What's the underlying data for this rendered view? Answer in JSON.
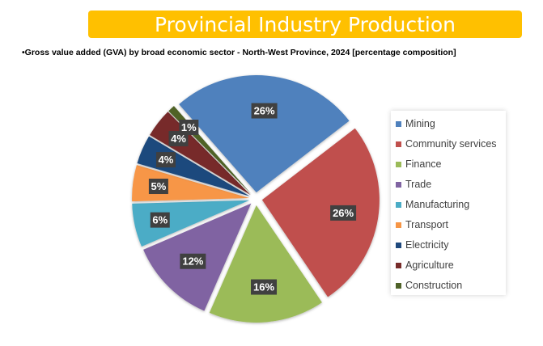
{
  "header": {
    "title": "Provincial Industry Production",
    "subtitle": "•Gross value added (GVA) by broad economic sector - North-West Province, 2024 [percentage composition]"
  },
  "chart_data": {
    "type": "pie",
    "title": "",
    "labels": [
      "Mining",
      "Community services",
      "Finance",
      "Trade",
      "Manufacturing",
      "Transport",
      "Electricity",
      "Agriculture",
      "Construction"
    ],
    "values": [
      26,
      26,
      16,
      12,
      6,
      5,
      4,
      4,
      1
    ],
    "data_labels": [
      "26%",
      "26%",
      "16%",
      "12%",
      "6%",
      "5%",
      "4%",
      "4%",
      "1%"
    ],
    "colors": [
      "#4f81bd",
      "#c0504d",
      "#9bbb59",
      "#8064a2",
      "#4bacc6",
      "#f79646",
      "#1f497d",
      "#772c2a",
      "#4f6228"
    ],
    "exploded": true,
    "legend_position": "right"
  }
}
